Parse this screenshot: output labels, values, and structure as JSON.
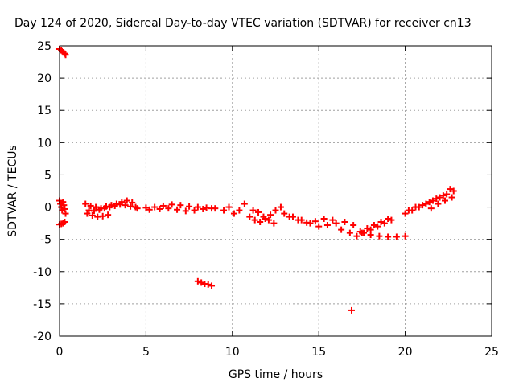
{
  "chart_data": {
    "type": "scatter",
    "title": "Day 124 of 2020, Sidereal Day-to-day VTEC variation (SDTVAR) for receiver cn13",
    "xlabel": "GPS time / hours",
    "ylabel": "SDTVAR / TECUs",
    "xlim": [
      0,
      25
    ],
    "ylim": [
      -20,
      25
    ],
    "xticks": [
      0,
      5,
      10,
      15,
      20,
      25
    ],
    "xtick_labels": [
      "0",
      "5",
      "10",
      "15",
      "20",
      "25"
    ],
    "yticks": [
      25,
      20,
      15,
      10,
      5,
      0,
      -5,
      -10,
      -15,
      -20
    ],
    "ytick_labels": [
      "25",
      "20",
      "15",
      "10",
      "5",
      "0",
      "-5",
      "-10",
      "-15",
      "-20"
    ],
    "grid": true,
    "marker": "+",
    "series": [
      {
        "name": "SDTVAR",
        "color": "#ff0000",
        "x": [
          0.0,
          0.1,
          0.2,
          0.3,
          0.35,
          0.0,
          0.05,
          0.1,
          0.15,
          0.2,
          0.25,
          0.3,
          0.35,
          0.0,
          0.1,
          0.2,
          0.3,
          1.5,
          1.8,
          2.1,
          2.4,
          2.7,
          3.0,
          3.3,
          3.6,
          3.9,
          4.2,
          1.6,
          1.9,
          2.2,
          2.5,
          2.8,
          1.7,
          2.0,
          2.3,
          2.6,
          2.9,
          3.2,
          3.5,
          3.8,
          4.1,
          4.4,
          4.5,
          5.0,
          5.5,
          6.0,
          6.5,
          7.0,
          7.5,
          8.0,
          8.5,
          9.0,
          5.2,
          5.8,
          6.3,
          6.8,
          7.3,
          7.8,
          8.3,
          8.8,
          9.5,
          9.8,
          10.1,
          10.4,
          10.7,
          11.0,
          11.3,
          11.6,
          11.9,
          12.2,
          12.5,
          12.8,
          11.2,
          11.5,
          11.8,
          12.1,
          12.4,
          13.0,
          13.5,
          14.0,
          14.5,
          15.0,
          15.5,
          16.0,
          16.5,
          17.0,
          13.3,
          13.8,
          14.3,
          14.8,
          15.3,
          15.8,
          16.3,
          16.8,
          17.2,
          17.6,
          18.0,
          18.4,
          18.8,
          19.2,
          17.4,
          17.8,
          18.2,
          18.6,
          19.0,
          17.5,
          18.0,
          18.5,
          19.0,
          19.5,
          20.0,
          20.0,
          20.4,
          20.8,
          21.2,
          21.6,
          22.0,
          22.4,
          22.8,
          20.2,
          20.6,
          21.0,
          21.4,
          21.8,
          22.2,
          22.6,
          21.5,
          21.9,
          22.3,
          22.7,
          8.0,
          8.2,
          8.4,
          8.6,
          8.8,
          16.9
        ],
        "y": [
          24.5,
          24.3,
          24.0,
          23.8,
          23.6,
          1.0,
          0.5,
          0.0,
          -0.5,
          0.8,
          0.3,
          -0.3,
          -1.0,
          -2.7,
          -2.6,
          -2.5,
          -2.3,
          0.5,
          0.2,
          0.0,
          -0.2,
          0.1,
          0.3,
          0.5,
          0.8,
          1.0,
          0.7,
          -1.0,
          -1.3,
          -1.5,
          -1.4,
          -1.2,
          -0.5,
          -0.6,
          -0.4,
          -0.2,
          0.0,
          0.2,
          0.4,
          0.3,
          0.1,
          0.0,
          -0.2,
          -0.1,
          0.0,
          0.2,
          0.4,
          0.3,
          0.1,
          0.0,
          -0.1,
          -0.2,
          -0.4,
          -0.3,
          -0.2,
          -0.4,
          -0.6,
          -0.5,
          -0.3,
          -0.2,
          -0.5,
          0.0,
          -1.0,
          -0.5,
          0.5,
          -1.5,
          -2.0,
          -2.3,
          -1.8,
          -1.2,
          -0.5,
          0.0,
          -0.5,
          -0.8,
          -1.5,
          -2.0,
          -2.5,
          -1.0,
          -1.5,
          -2.0,
          -2.5,
          -3.0,
          -2.8,
          -2.5,
          -2.3,
          -2.8,
          -1.5,
          -2.0,
          -2.4,
          -2.2,
          -1.8,
          -2.0,
          -3.5,
          -4.0,
          -4.5,
          -4.0,
          -3.5,
          -3.0,
          -2.5,
          -2.0,
          -3.8,
          -3.3,
          -2.8,
          -2.3,
          -1.8,
          -4.0,
          -4.3,
          -4.5,
          -4.6,
          -4.6,
          -4.5,
          -1.0,
          -0.5,
          0.0,
          0.5,
          1.0,
          1.5,
          2.0,
          2.5,
          -0.5,
          0.0,
          0.3,
          0.8,
          1.3,
          1.8,
          2.8,
          -0.2,
          0.5,
          1.0,
          1.5,
          -11.5,
          -11.7,
          -11.9,
          -12.0,
          -12.2,
          -16.0
        ]
      }
    ]
  }
}
